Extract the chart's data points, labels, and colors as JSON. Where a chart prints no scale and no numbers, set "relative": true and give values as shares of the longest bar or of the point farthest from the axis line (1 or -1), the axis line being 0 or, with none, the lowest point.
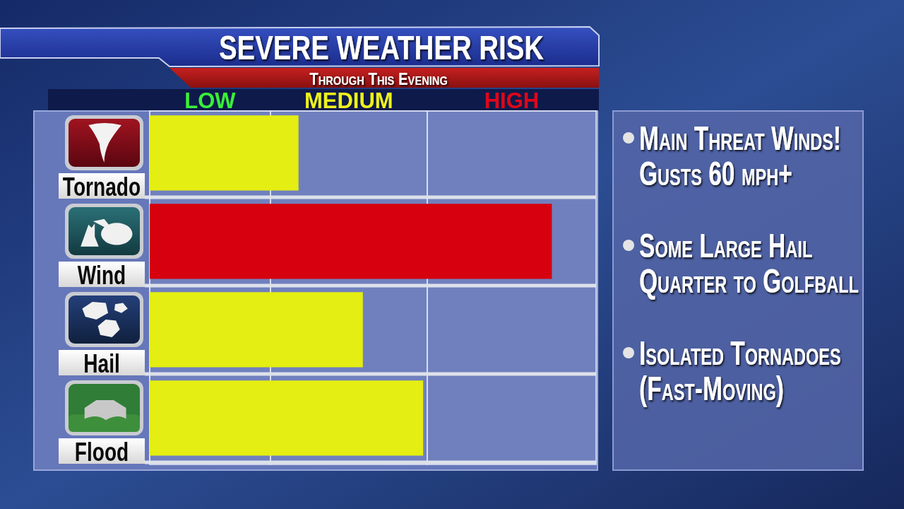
{
  "chart_data": {
    "type": "bar",
    "orientation": "horizontal",
    "relative": true,
    "grid": "y",
    "title": "SEVERE WEATHER RISK",
    "subtitle": "Through This Evening",
    "categories": [
      "Tornado",
      "Wind",
      "Hail",
      "Flood"
    ],
    "values": [
      0.37,
      1,
      0.53,
      0.68
    ],
    "colors": [
      "#e4ee12",
      "#d6000f",
      "#e4ee12",
      "#e4ee12"
    ],
    "bands": [
      {
        "axis": "x",
        "from": 0,
        "to": 0.3,
        "label": "LOW"
      },
      {
        "axis": "x",
        "from": 0.3,
        "to": 0.69,
        "label": "MEDIUM"
      },
      {
        "axis": "x",
        "from": 0.69,
        "to": 1.11,
        "label": "HIGH"
      }
    ],
    "annotations": [
      "Main Threat Winds! Gusts 60 mph+",
      "Some Large Hail Quarter to Golfball",
      "Isolated Tornadoes (Fast-Moving)"
    ]
  }
}
